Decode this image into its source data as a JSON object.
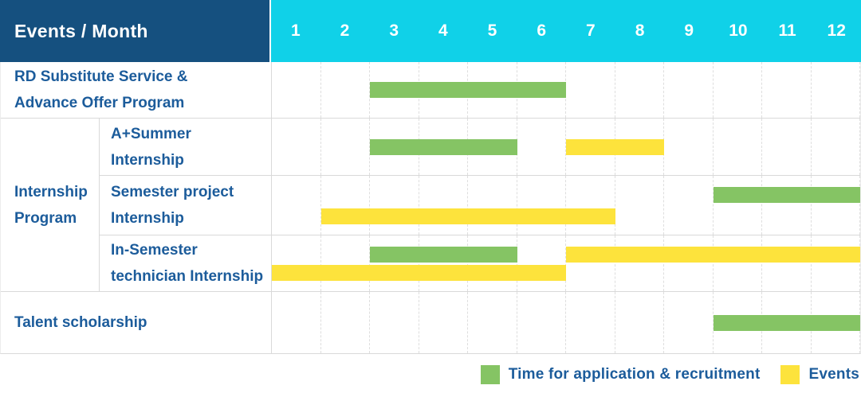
{
  "colors": {
    "header_navy": "#15507F",
    "header_cyan": "#10D1E8",
    "label_blue": "#1C5C9B",
    "application_green": "#85C464",
    "event_yellow": "#FDE33C"
  },
  "header": {
    "title": "Events / Month",
    "months": [
      "1",
      "2",
      "3",
      "4",
      "5",
      "6",
      "7",
      "8",
      "9",
      "10",
      "11",
      "12"
    ]
  },
  "rows": [
    {
      "type": "simple",
      "name": "rd-substitute-service",
      "label_lines": [
        "RD Substitute Service &",
        "Advance Offer Program"
      ],
      "bars": [
        {
          "kind": "green",
          "start": 3,
          "end": 6,
          "lane": "center"
        }
      ]
    },
    {
      "type": "group",
      "name": "internship-program",
      "group_label_lines": [
        "Internship",
        "Program"
      ],
      "children": [
        {
          "name": "a-plus-summer-internship",
          "label_lines": [
            "A+Summer",
            "Internship"
          ],
          "bars": [
            {
              "kind": "green",
              "start": 3,
              "end": 5,
              "lane": "center"
            },
            {
              "kind": "yellow",
              "start": 7,
              "end": 8,
              "lane": "center"
            }
          ]
        },
        {
          "name": "semester-project-internship",
          "label_lines": [
            "Semester project",
            "Internship"
          ],
          "bars": [
            {
              "kind": "green",
              "start": 10,
              "end": 12,
              "lane": "top"
            },
            {
              "kind": "yellow",
              "start": 2,
              "end": 7,
              "lane": "bottom"
            }
          ]
        },
        {
          "name": "in-semester-technician-internship",
          "label_lines": [
            "In-Semester",
            "technician Internship"
          ],
          "bars": [
            {
              "kind": "green",
              "start": 3,
              "end": 5,
              "lane": "top"
            },
            {
              "kind": "yellow",
              "start": 7,
              "end": 12,
              "lane": "top"
            },
            {
              "kind": "yellow",
              "start": 1,
              "end": 6,
              "lane": "bottom"
            }
          ]
        }
      ]
    },
    {
      "type": "simple",
      "name": "talent-scholarship",
      "label_lines": [
        "Talent scholarship"
      ],
      "bars": [
        {
          "kind": "green",
          "start": 10,
          "end": 12,
          "lane": "center"
        }
      ]
    }
  ],
  "legend": {
    "items": [
      {
        "kind": "green",
        "label": "Time for application & recruitment"
      },
      {
        "kind": "yellow",
        "label": "Events"
      }
    ]
  },
  "chart_data": {
    "type": "table",
    "title": "Events / Month",
    "x_months": [
      1,
      2,
      3,
      4,
      5,
      6,
      7,
      8,
      9,
      10,
      11,
      12
    ],
    "legend": {
      "green": "Time for application & recruitment",
      "yellow": "Events"
    },
    "rows": [
      {
        "event": "RD Substitute Service & Advance Offer Program",
        "group": null,
        "application_recruitment_months": [
          [
            3,
            6
          ]
        ],
        "event_months": []
      },
      {
        "event": "A+Summer Internship",
        "group": "Internship Program",
        "application_recruitment_months": [
          [
            3,
            5
          ]
        ],
        "event_months": [
          [
            7,
            8
          ]
        ]
      },
      {
        "event": "Semester project Internship",
        "group": "Internship Program",
        "application_recruitment_months": [
          [
            10,
            12
          ]
        ],
        "event_months": [
          [
            2,
            7
          ]
        ]
      },
      {
        "event": "In-Semester technician Internship",
        "group": "Internship Program",
        "application_recruitment_months": [
          [
            3,
            5
          ]
        ],
        "event_months": [
          [
            7,
            12
          ],
          [
            1,
            6
          ]
        ]
      },
      {
        "event": "Talent scholarship",
        "group": null,
        "application_recruitment_months": [
          [
            10,
            12
          ]
        ],
        "event_months": []
      }
    ]
  }
}
